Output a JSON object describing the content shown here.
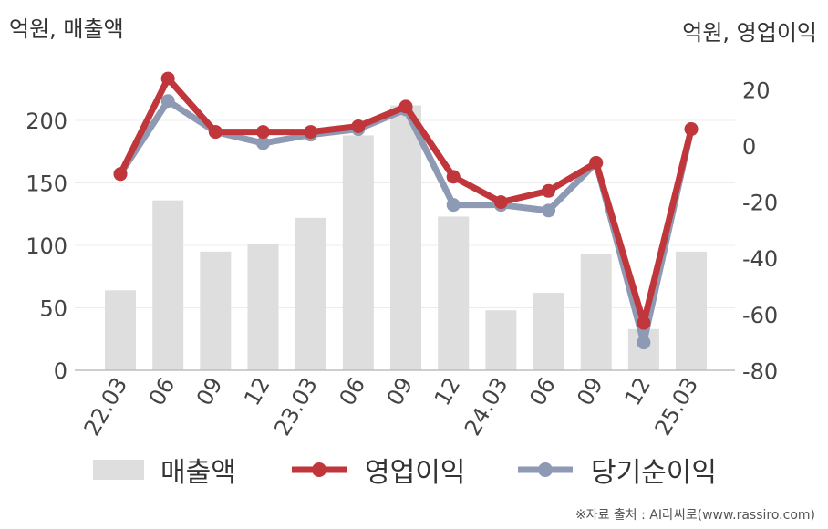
{
  "units": {
    "left": "억원, 매출액",
    "right": "억원, 영업이익"
  },
  "source": "※자료 출처 : AI라씨로(www.rassiro.com)",
  "colors": {
    "revenue": "#dedede",
    "operating_profit": "#c0363b",
    "net_income": "#8e9ab3"
  },
  "chart_data": {
    "type": "bar",
    "categories": [
      "22.03",
      "06",
      "09",
      "12",
      "23.03",
      "06",
      "09",
      "12",
      "24.03",
      "06",
      "09",
      "12",
      "25.03"
    ],
    "series": [
      {
        "name": "매출액",
        "type": "bar",
        "axis": "left",
        "values": [
          64,
          136,
          95,
          101,
          122,
          188,
          212,
          123,
          48,
          62,
          93,
          33,
          95
        ]
      },
      {
        "name": "영업이익",
        "type": "line",
        "axis": "right",
        "values": [
          -10,
          24,
          5,
          5,
          5,
          7,
          14,
          -11,
          -20,
          -16,
          -6,
          -63,
          6
        ]
      },
      {
        "name": "당기순이익",
        "type": "line",
        "axis": "right",
        "values": [
          -10,
          16,
          5,
          1,
          4,
          6,
          13,
          -21,
          -21,
          -23,
          -6,
          -70,
          6
        ]
      }
    ],
    "y_left": {
      "range": [
        0,
        240
      ],
      "ticks": [
        0,
        50,
        100,
        150,
        200
      ]
    },
    "y_right": {
      "range": [
        -80,
        30
      ],
      "ticks": [
        -80,
        -60,
        -40,
        -20,
        0,
        20
      ]
    },
    "grid": true,
    "legend_position": "bottom"
  }
}
